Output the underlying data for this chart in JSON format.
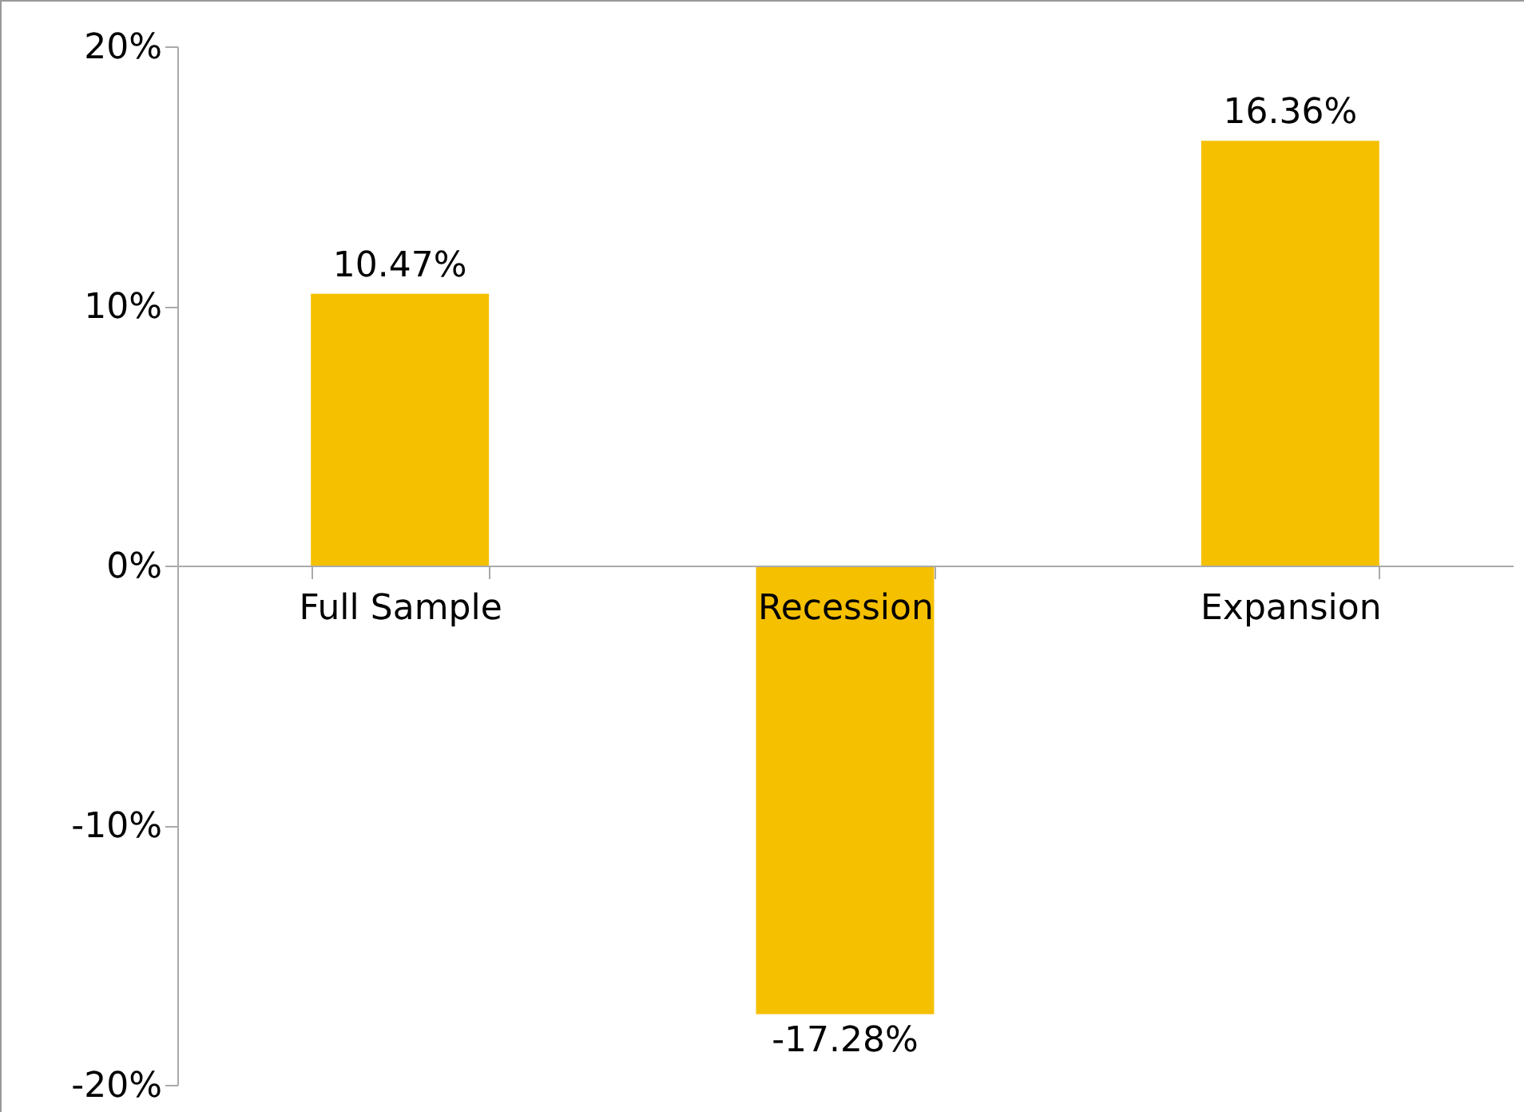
{
  "chart_data": {
    "type": "bar",
    "categories": [
      "Full Sample",
      "Recession",
      "Expansion"
    ],
    "values": [
      10.47,
      -17.28,
      16.36
    ],
    "value_labels": [
      "10.47%",
      "-17.28%",
      "16.36%"
    ],
    "color": "#f5c000",
    "ylim": [
      -20,
      20
    ],
    "yticks": [
      {
        "value": -20,
        "label": "-20%"
      },
      {
        "value": -10,
        "label": "-10%"
      },
      {
        "value": 0,
        "label": "0%"
      },
      {
        "value": 10,
        "label": "10%"
      },
      {
        "value": 20,
        "label": "20%"
      }
    ],
    "grid": false
  }
}
